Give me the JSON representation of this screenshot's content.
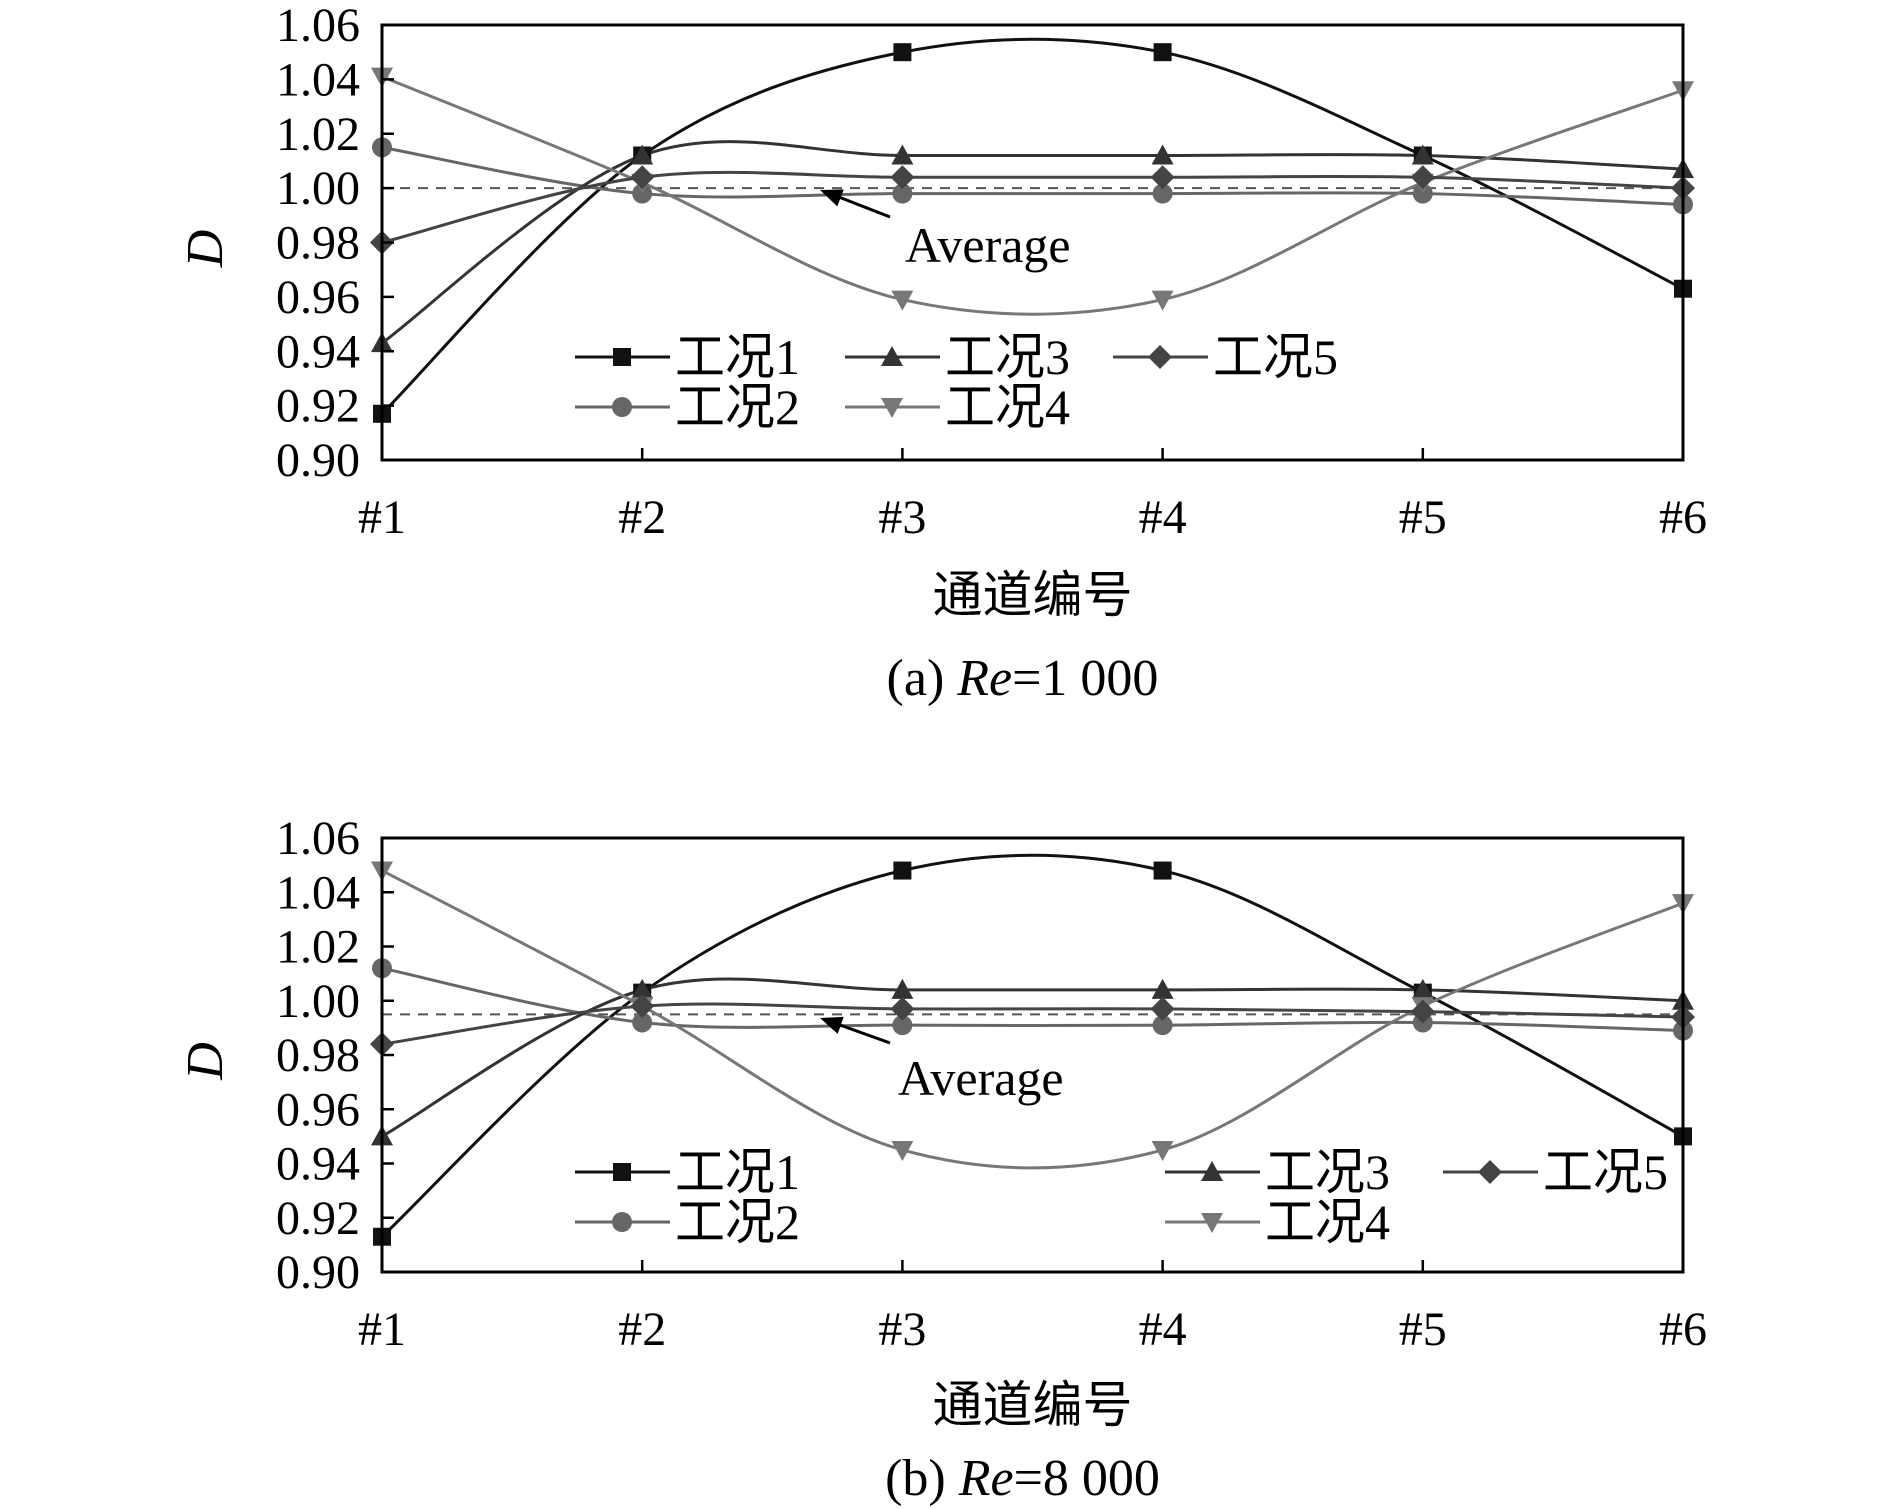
{
  "chart_data": [
    {
      "type": "line",
      "caption_prefix": "(a) ",
      "caption_var": "Re",
      "caption_suffix": "=1 000",
      "xlabel": "通道编号",
      "ylabel": "D",
      "categories": [
        "#1",
        "#2",
        "#3",
        "#4",
        "#5",
        "#6"
      ],
      "ylim": [
        0.9,
        1.06
      ],
      "yticks": [
        "0.90",
        "0.92",
        "0.94",
        "0.96",
        "0.98",
        "1.00",
        "1.02",
        "1.04",
        "1.06"
      ],
      "average": 1.0,
      "annotation": "Average",
      "grid": false,
      "series": [
        {
          "name": "工况1",
          "marker": "square",
          "color": "#111111",
          "values": [
            0.917,
            1.012,
            1.05,
            1.05,
            1.012,
            0.963
          ]
        },
        {
          "name": "工况2",
          "marker": "circle",
          "color": "#666666",
          "values": [
            1.015,
            0.998,
            0.998,
            0.998,
            0.998,
            0.994
          ]
        },
        {
          "name": "工况3",
          "marker": "triangle-up",
          "color": "#333333",
          "values": [
            0.943,
            1.012,
            1.012,
            1.012,
            1.012,
            1.007
          ]
        },
        {
          "name": "工况4",
          "marker": "triangle-down",
          "color": "#777777",
          "values": [
            1.041,
            1.002,
            0.959,
            0.959,
            1.002,
            1.036
          ]
        },
        {
          "name": "工况5",
          "marker": "diamond",
          "color": "#444444",
          "values": [
            0.98,
            1.004,
            1.004,
            1.004,
            1.004,
            1.0
          ]
        }
      ]
    },
    {
      "type": "line",
      "caption_prefix": "(b) ",
      "caption_var": "Re",
      "caption_suffix": "=8 000",
      "xlabel": "通道编号",
      "ylabel": "D",
      "categories": [
        "#1",
        "#2",
        "#3",
        "#4",
        "#5",
        "#6"
      ],
      "ylim": [
        0.9,
        1.06
      ],
      "yticks": [
        "0.90",
        "0.92",
        "0.94",
        "0.96",
        "0.98",
        "1.00",
        "1.02",
        "1.04",
        "1.06"
      ],
      "average": 0.995,
      "annotation": "Average",
      "grid": false,
      "series": [
        {
          "name": "工况1",
          "marker": "square",
          "color": "#111111",
          "values": [
            0.913,
            1.003,
            1.048,
            1.048,
            1.003,
            0.95
          ]
        },
        {
          "name": "工况2",
          "marker": "circle",
          "color": "#666666",
          "values": [
            1.012,
            0.992,
            0.991,
            0.991,
            0.992,
            0.989
          ]
        },
        {
          "name": "工况3",
          "marker": "triangle-up",
          "color": "#333333",
          "values": [
            0.95,
            1.004,
            1.004,
            1.004,
            1.004,
            1.0
          ]
        },
        {
          "name": "工况4",
          "marker": "triangle-down",
          "color": "#777777",
          "values": [
            1.048,
            0.998,
            0.945,
            0.945,
            0.998,
            1.036
          ]
        },
        {
          "name": "工况5",
          "marker": "diamond",
          "color": "#444444",
          "values": [
            0.984,
            0.998,
            0.997,
            0.997,
            0.996,
            0.994
          ]
        }
      ]
    }
  ]
}
